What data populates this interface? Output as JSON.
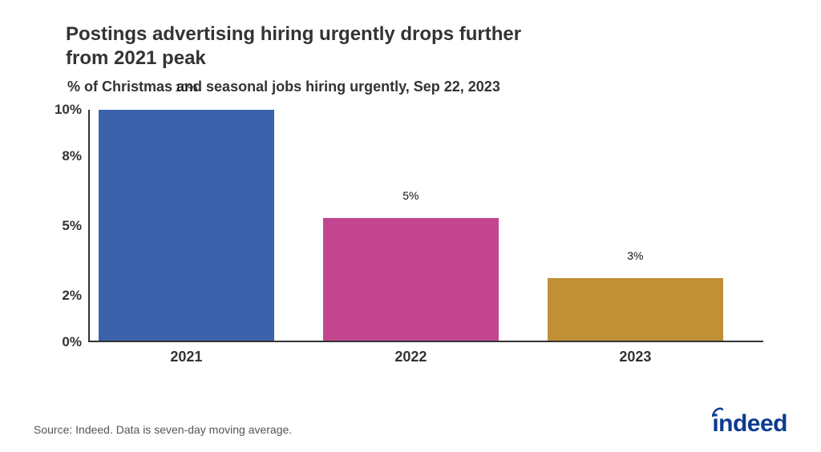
{
  "title": {
    "line1": "Postings advertising hiring urgently drops further",
    "line2": " from 2021 peak",
    "fontsize": 24,
    "color": "#333333"
  },
  "subtitle": {
    "text": "% of Christmas and seasonal jobs hiring urgently, Sep 22, 2023",
    "fontsize": 18,
    "color": "#333333"
  },
  "chart": {
    "type": "bar",
    "ylim": [
      0,
      10
    ],
    "yticks": [
      0,
      2,
      5,
      8,
      10
    ],
    "ytick_labels": [
      "0%",
      "2%",
      "5%",
      "8%",
      "10%"
    ],
    "ytick_fontsize": 17,
    "axis_color": "#333333",
    "categories": [
      "2021",
      "2022",
      "2023"
    ],
    "x_fontsize": 18,
    "values": [
      10,
      5.3,
      2.7
    ],
    "value_labels": [
      "10%",
      "5%",
      "3%"
    ],
    "value_label_fontsize": 14,
    "bar_colors": [
      "#3b62ab",
      "#c4458f",
      "#c09036"
    ],
    "bar_width_pct": 78,
    "background_color": "#ffffff"
  },
  "source": {
    "text": "Source: Indeed. Data is seven-day moving average.",
    "fontsize": 14,
    "color": "#555555"
  },
  "logo": {
    "text": "indeed",
    "color": "#0a3b8f",
    "fontsize": 30
  }
}
